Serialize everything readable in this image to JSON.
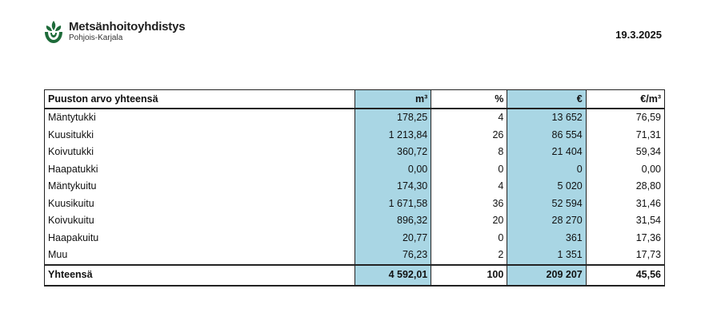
{
  "header": {
    "org_name": "Metsänhoitoyhdistys",
    "org_region": "Pohjois-Karjala",
    "logo_icon": "mhy-leaf-logo-icon",
    "brand_color": "#1e6b3a",
    "date": "19.3.2025"
  },
  "table": {
    "highlight_color": "#a9d6e4",
    "columns": {
      "label": "Puuston arvo yhteensä",
      "m3": "m³",
      "pct": "%",
      "eur": "€",
      "eur_per_m3": "€/m³"
    },
    "rows": [
      {
        "label": "Mäntytukki",
        "m3": "178,25",
        "pct": "4",
        "eur": "13 652",
        "eur_per_m3": "76,59"
      },
      {
        "label": "Kuusitukki",
        "m3": "1 213,84",
        "pct": "26",
        "eur": "86 554",
        "eur_per_m3": "71,31"
      },
      {
        "label": "Koivutukki",
        "m3": "360,72",
        "pct": "8",
        "eur": "21 404",
        "eur_per_m3": "59,34"
      },
      {
        "label": "Haapatukki",
        "m3": "0,00",
        "pct": "0",
        "eur": "0",
        "eur_per_m3": "0,00"
      },
      {
        "label": "Mäntykuitu",
        "m3": "174,30",
        "pct": "4",
        "eur": "5 020",
        "eur_per_m3": "28,80"
      },
      {
        "label": "Kuusikuitu",
        "m3": "1 671,58",
        "pct": "36",
        "eur": "52 594",
        "eur_per_m3": "31,46"
      },
      {
        "label": "Koivukuitu",
        "m3": "896,32",
        "pct": "20",
        "eur": "28 270",
        "eur_per_m3": "31,54"
      },
      {
        "label": "Haapakuitu",
        "m3": "20,77",
        "pct": "0",
        "eur": "361",
        "eur_per_m3": "17,36"
      },
      {
        "label": "Muu",
        "m3": "76,23",
        "pct": "2",
        "eur": "1 351",
        "eur_per_m3": "17,73"
      }
    ],
    "total": {
      "label": "Yhteensä",
      "m3": "4 592,01",
      "pct": "100",
      "eur": "209 207",
      "eur_per_m3": "45,56"
    }
  }
}
